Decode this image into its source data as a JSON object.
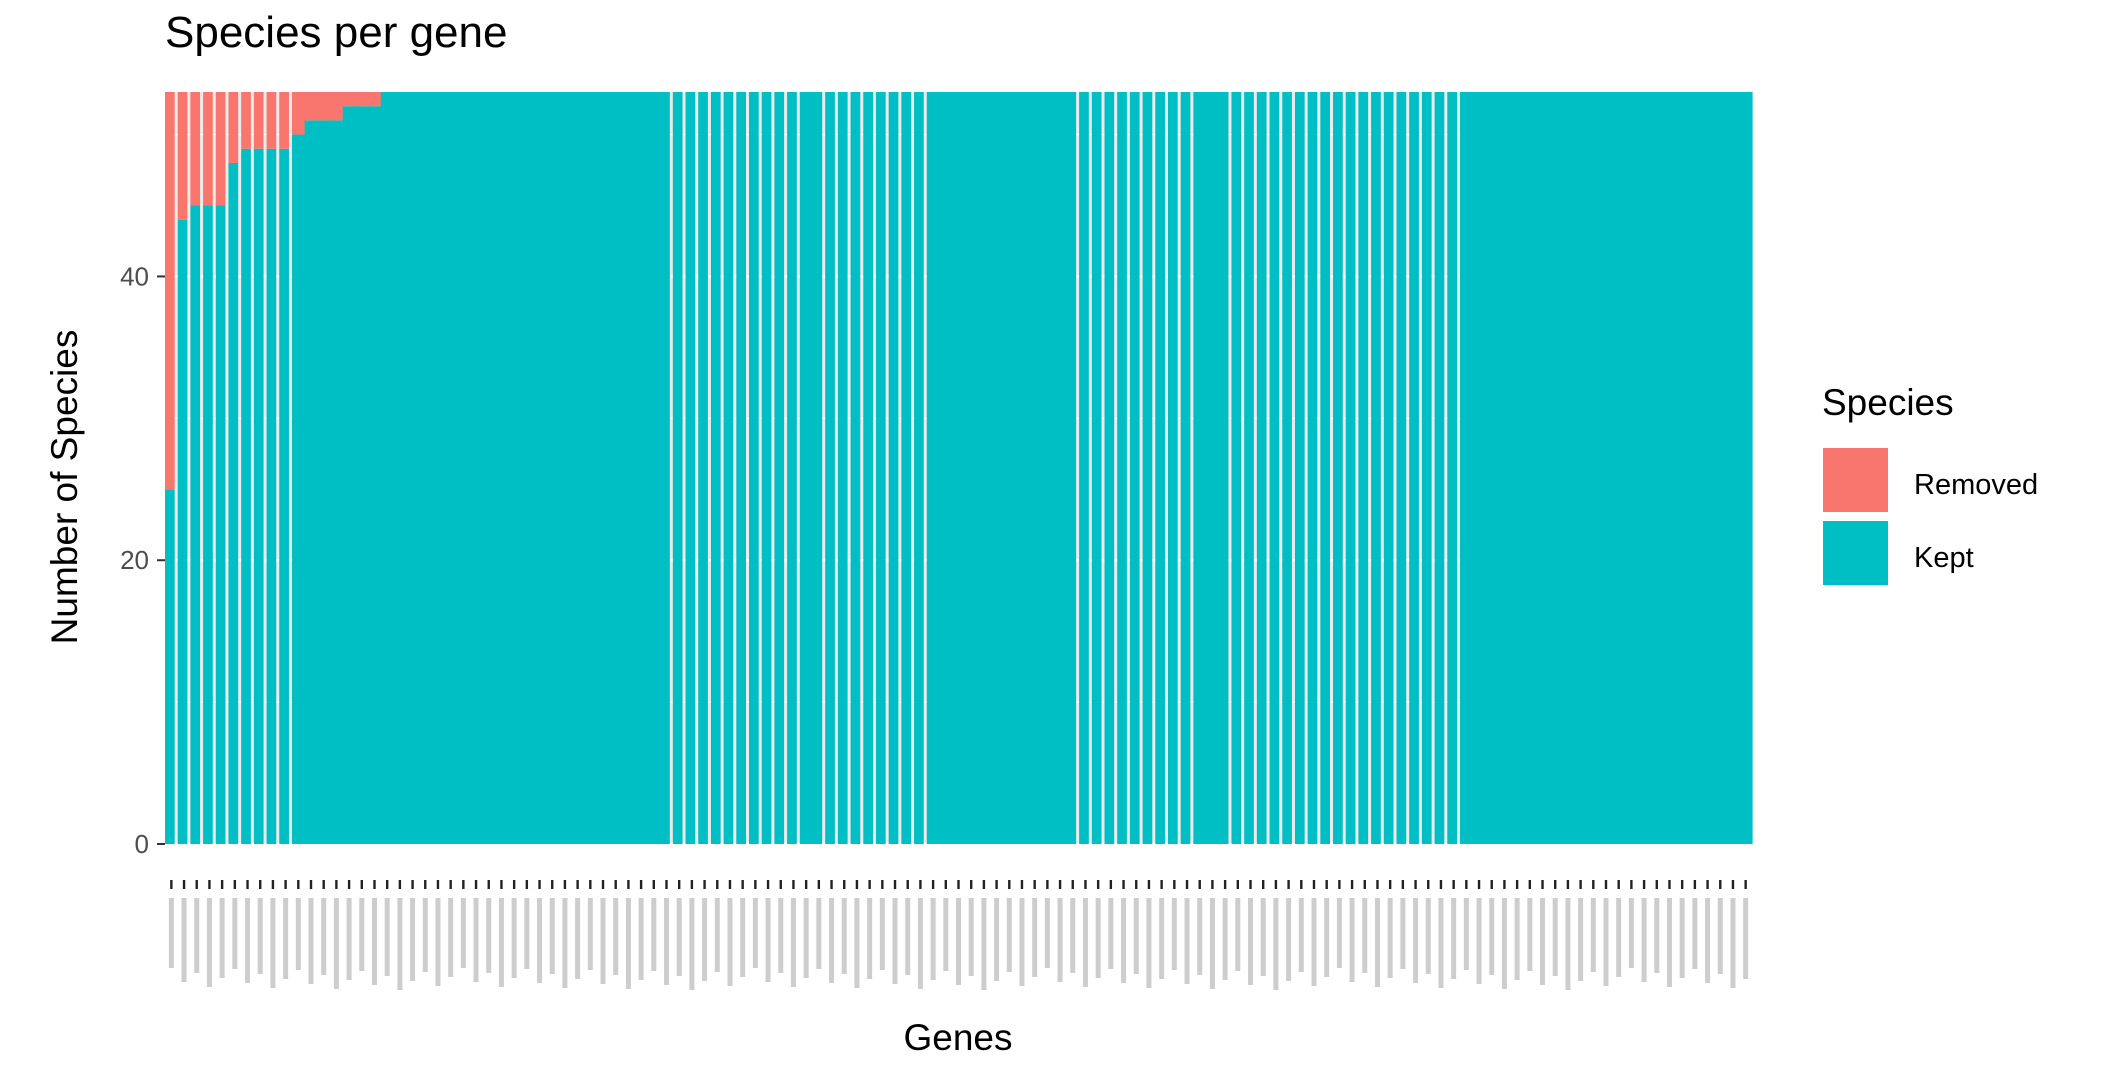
{
  "chart_data": {
    "type": "bar",
    "stacked": true,
    "title": "Species per gene",
    "xlabel": "Genes",
    "ylabel": "Number of Species",
    "ylim": [
      0,
      53
    ],
    "y_ticks": [
      0,
      20,
      40
    ],
    "grid": true,
    "legend": {
      "title": "Species",
      "position": "right",
      "entries": [
        "Removed",
        "Kept"
      ]
    },
    "colors": {
      "Removed": "#f8766d",
      "Kept": "#00bfc4",
      "panel": "#ebebeb",
      "grid": "#ffffff"
    },
    "num_genes": 125,
    "x_tick_labels_legible": false,
    "series": [
      {
        "name": "Kept",
        "values": [
          25,
          44,
          45,
          45,
          45,
          48,
          49,
          49,
          49,
          49,
          50,
          51,
          51,
          51,
          52,
          52,
          52,
          53,
          53,
          53,
          53,
          53,
          53,
          53,
          53,
          53,
          53,
          53,
          53,
          53,
          53,
          53,
          53,
          53,
          53,
          53,
          53,
          53,
          53,
          53,
          53,
          53,
          53,
          53,
          53,
          53,
          53,
          53,
          53,
          53,
          53,
          53,
          53,
          53,
          53,
          53,
          53,
          53,
          53,
          53,
          53,
          53,
          53,
          53,
          53,
          53,
          53,
          53,
          53,
          53,
          53,
          53,
          53,
          53,
          53,
          53,
          53,
          53,
          53,
          53,
          53,
          53,
          53,
          53,
          53,
          53,
          53,
          53,
          53,
          53,
          53,
          53,
          53,
          53,
          53,
          53,
          53,
          53,
          53,
          53,
          53,
          53,
          53,
          53,
          53,
          53,
          53,
          53,
          53,
          53,
          53,
          53,
          53,
          53,
          53,
          53,
          53,
          53,
          53,
          53,
          53,
          53,
          53,
          53,
          53
        ]
      },
      {
        "name": "Removed",
        "values": [
          28,
          9,
          8,
          8,
          8,
          5,
          4,
          4,
          4,
          4,
          3,
          2,
          2,
          2,
          1,
          1,
          1,
          0,
          0,
          0,
          0,
          0,
          0,
          0,
          0,
          0,
          0,
          0,
          0,
          0,
          0,
          0,
          0,
          0,
          0,
          0,
          0,
          0,
          0,
          0,
          0,
          0,
          0,
          0,
          0,
          0,
          0,
          0,
          0,
          0,
          0,
          0,
          0,
          0,
          0,
          0,
          0,
          0,
          0,
          0,
          0,
          0,
          0,
          0,
          0,
          0,
          0,
          0,
          0,
          0,
          0,
          0,
          0,
          0,
          0,
          0,
          0,
          0,
          0,
          0,
          0,
          0,
          0,
          0,
          0,
          0,
          0,
          0,
          0,
          0,
          0,
          0,
          0,
          0,
          0,
          0,
          0,
          0,
          0,
          0,
          0,
          0,
          0,
          0,
          0,
          0,
          0,
          0,
          0,
          0,
          0,
          0,
          0,
          0,
          0,
          0,
          0,
          0,
          0,
          0,
          0,
          0,
          0,
          0,
          0
        ]
      }
    ],
    "visible_gaps_after_gene": [
      1,
      2,
      3,
      4,
      5,
      6,
      7,
      8,
      9,
      10,
      40,
      41,
      42,
      43,
      44,
      45,
      46,
      47,
      48,
      49,
      50,
      52,
      53,
      54,
      55,
      56,
      57,
      58,
      59,
      60,
      72,
      73,
      74,
      75,
      76,
      77,
      78,
      79,
      80,
      81,
      84,
      85,
      86,
      87,
      88,
      89,
      90,
      91,
      92,
      93,
      94,
      95,
      96,
      97,
      98,
      99,
      100,
      101,
      102
    ]
  }
}
